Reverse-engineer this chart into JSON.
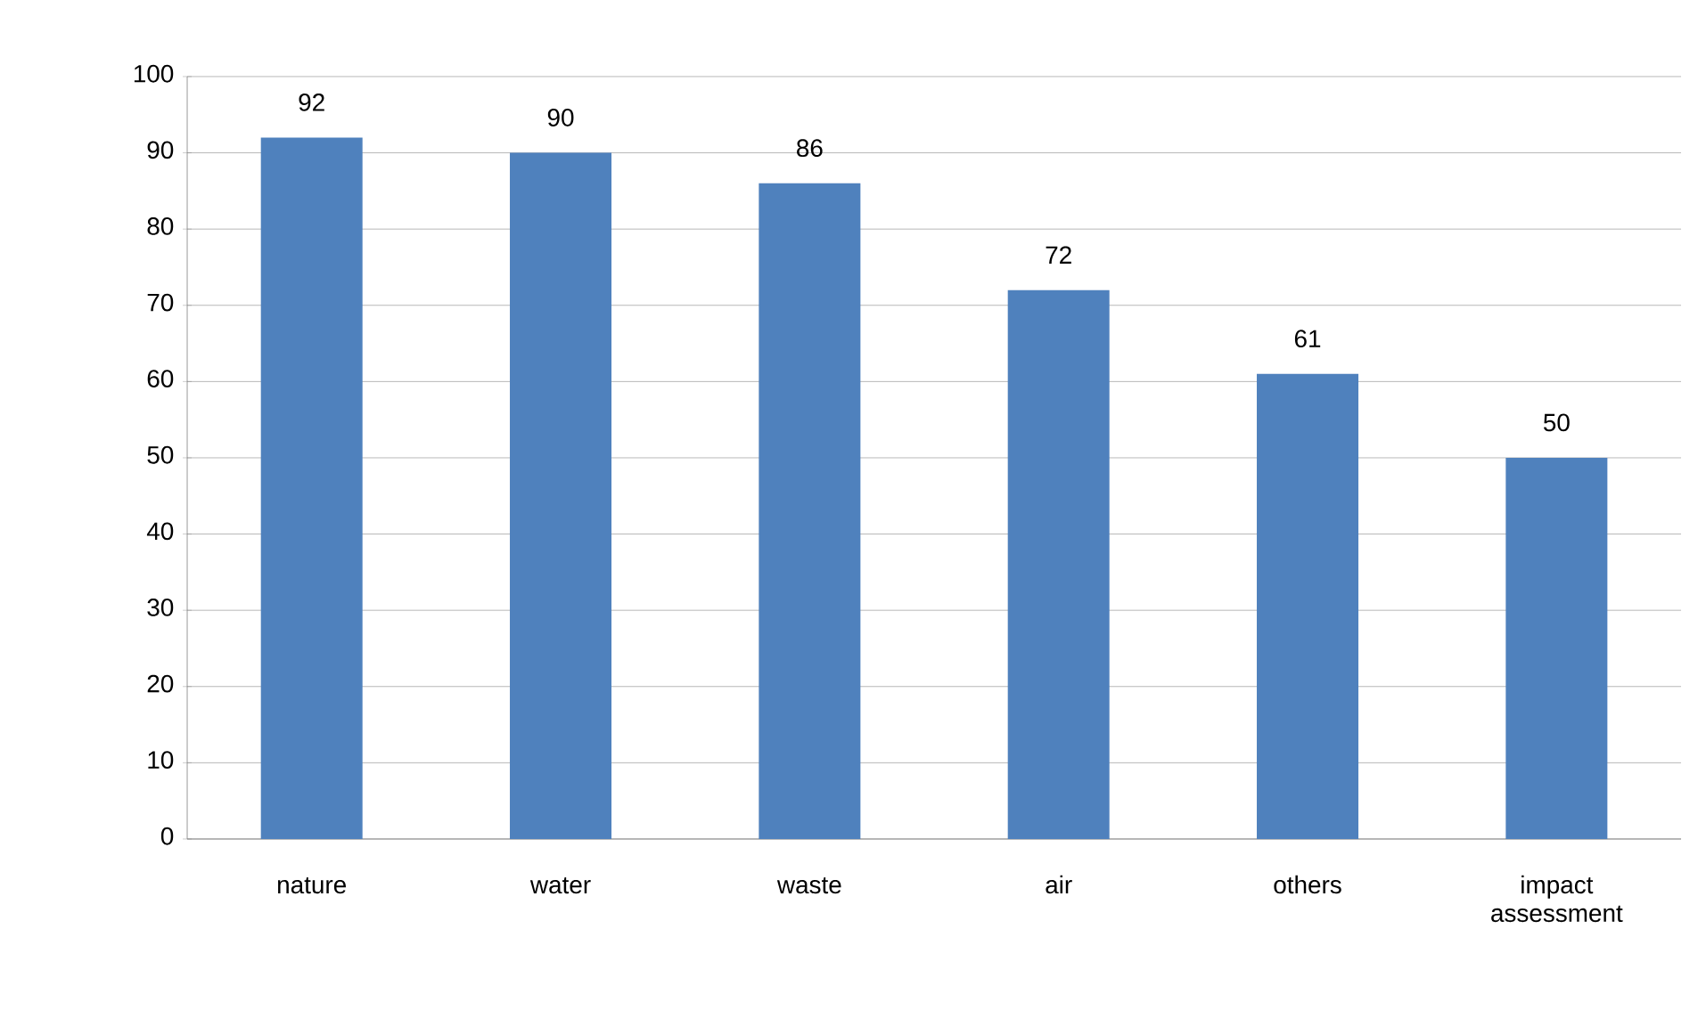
{
  "chart_data": {
    "type": "bar",
    "categories": [
      "nature",
      "water",
      "waste",
      "air",
      "others",
      "impact assessment"
    ],
    "values": [
      92,
      90,
      86,
      72,
      61,
      50
    ],
    "color": "#4f81bd",
    "ylim": [
      0,
      100
    ],
    "yticks": [
      0,
      10,
      20,
      30,
      40,
      50,
      60,
      70,
      80,
      90,
      100
    ],
    "grid": "y",
    "data_labels": true
  }
}
